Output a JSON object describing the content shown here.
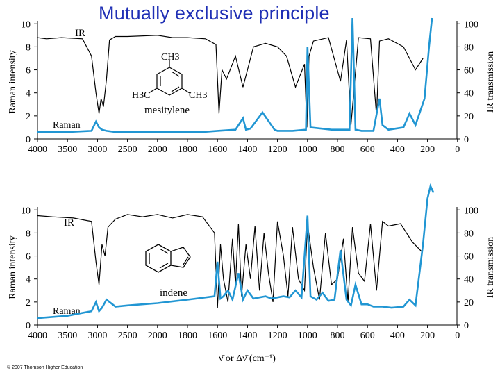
{
  "title": "Mutually exclusive principle",
  "copyright": "© 2007 Thomson Higher Education",
  "colors": {
    "raman": "#2196d3",
    "ir": "#000000",
    "title": "#1f2fb5"
  },
  "chart_data": [
    {
      "type": "line",
      "molecule": "mesitylene",
      "ir_label": "IR",
      "raman_label": "Raman",
      "structure_labels": {
        "top": "CH3",
        "left": "H3C",
        "right": "CH3"
      },
      "ylabel_left": "Raman intensity",
      "ylabel_right": "IR transmission",
      "x_ticks": [
        "4000",
        "3500",
        "3000",
        "2500",
        "2000",
        "1800",
        "1600",
        "1400",
        "1200",
        "1000",
        "800",
        "600",
        "400",
        "200",
        "0"
      ],
      "y_left_ticks": [
        "0",
        "2",
        "4",
        "6",
        "8",
        "10"
      ],
      "y_right_ticks": [
        "0",
        "20",
        "40",
        "60",
        "80",
        "100"
      ],
      "ylim_left": [
        0,
        10
      ],
      "ylim_right": [
        0,
        100
      ],
      "series": [
        {
          "name": "IR",
          "x_index": [
            0,
            0.3,
            0.8,
            1.5,
            1.8,
            1.95,
            2.05,
            2.12,
            2.2,
            2.3,
            2.4,
            2.6,
            3,
            4,
            4.5,
            5,
            5.6,
            5.95,
            6.05,
            6.15,
            6.3,
            6.6,
            6.85,
            7.0,
            7.2,
            7.6,
            8,
            8.3,
            8.6,
            8.9,
            8.98,
            9.05,
            9.2,
            9.7,
            10.1,
            10.3,
            10.45,
            10.7,
            11.1,
            11.3,
            11.4,
            11.7,
            12.2,
            12.6,
            12.85
          ],
          "values": [
            88,
            87,
            88,
            87,
            72,
            40,
            22,
            35,
            28,
            52,
            86,
            89,
            89,
            90,
            88,
            88,
            87,
            82,
            22,
            60,
            52,
            72,
            45,
            60,
            80,
            83,
            80,
            72,
            45,
            65,
            10,
            72,
            85,
            88,
            50,
            86,
            12,
            88,
            87,
            20,
            85,
            87,
            80,
            60,
            70
          ]
        },
        {
          "name": "Raman",
          "x_index": [
            0,
            1,
            1.8,
            1.95,
            2.05,
            2.15,
            2.3,
            2.6,
            4,
            5.5,
            6.0,
            6.6,
            6.85,
            6.95,
            7.1,
            7.5,
            7.9,
            8,
            8.5,
            8.95,
            9.0,
            9.1,
            9.8,
            10.4,
            10.5,
            10.6,
            10.8,
            11.2,
            11.4,
            11.5,
            11.7,
            12.2,
            12.4,
            12.6,
            12.9,
            13.05,
            13.15
          ],
          "values": [
            0.6,
            0.6,
            0.7,
            1.5,
            1.0,
            0.8,
            0.7,
            0.6,
            0.6,
            0.6,
            0.7,
            0.8,
            1.8,
            0.8,
            0.9,
            2.3,
            0.8,
            0.7,
            0.7,
            0.8,
            8.0,
            1.0,
            0.8,
            0.8,
            10.5,
            0.8,
            0.7,
            0.7,
            3.5,
            1.2,
            0.8,
            1.0,
            2.2,
            1.2,
            3.5,
            8.0,
            10.5
          ]
        }
      ]
    },
    {
      "type": "line",
      "molecule": "indene",
      "ir_label": "IR",
      "raman_label": "Raman",
      "xlabel": "ν̄ or Δν̄ (cm⁻¹)",
      "ylabel_left": "Raman intensity",
      "ylabel_right": "IR transmission",
      "x_ticks": [
        "4000",
        "3500",
        "3000",
        "2500",
        "2000",
        "1800",
        "1600",
        "1400",
        "1200",
        "1000",
        "800",
        "600",
        "400",
        "200",
        "0"
      ],
      "y_left_ticks": [
        "0",
        "2",
        "4",
        "6",
        "8",
        "10"
      ],
      "y_right_ticks": [
        "0",
        "20",
        "40",
        "60",
        "80",
        "100"
      ],
      "ylim_left": [
        0,
        10
      ],
      "ylim_right": [
        0,
        100
      ],
      "series": [
        {
          "name": "IR",
          "x_index": [
            0,
            0.5,
            1.2,
            1.8,
            1.95,
            2.05,
            2.15,
            2.25,
            2.35,
            2.6,
            3,
            3.5,
            4,
            4.5,
            5,
            5.5,
            5.9,
            6.0,
            6.1,
            6.2,
            6.35,
            6.5,
            6.6,
            6.7,
            6.8,
            6.95,
            7.1,
            7.25,
            7.4,
            7.55,
            7.7,
            7.85,
            8.0,
            8.2,
            8.35,
            8.5,
            8.7,
            8.9,
            9.0,
            9.2,
            9.4,
            9.6,
            9.8,
            10.0,
            10.2,
            10.35,
            10.5,
            10.7,
            10.9,
            11.1,
            11.3,
            11.5,
            11.7,
            12.1,
            12.5,
            12.8
          ],
          "values": [
            95,
            94,
            93,
            90,
            55,
            35,
            70,
            60,
            85,
            92,
            96,
            94,
            96,
            93,
            96,
            94,
            80,
            15,
            70,
            40,
            20,
            75,
            35,
            88,
            25,
            70,
            40,
            86,
            30,
            80,
            45,
            20,
            90,
            60,
            25,
            85,
            40,
            30,
            88,
            50,
            22,
            80,
            35,
            40,
            75,
            20,
            85,
            45,
            38,
            88,
            30,
            90,
            86,
            88,
            72,
            64
          ]
        },
        {
          "name": "Raman",
          "x_index": [
            0,
            1,
            1.8,
            1.95,
            2.05,
            2.15,
            2.3,
            2.6,
            3,
            4,
            5,
            5.9,
            6.0,
            6.1,
            6.2,
            6.35,
            6.5,
            6.7,
            6.85,
            7.0,
            7.2,
            7.4,
            7.6,
            7.8,
            8.0,
            8.2,
            8.4,
            8.6,
            8.8,
            9.0,
            9.1,
            9.3,
            9.5,
            9.7,
            9.9,
            10.1,
            10.3,
            10.45,
            10.6,
            10.8,
            11.0,
            11.2,
            11.5,
            11.8,
            12.2,
            12.4,
            12.6,
            12.85,
            13.0,
            13.1,
            13.2
          ],
          "values": [
            0.6,
            0.8,
            1.2,
            2.0,
            1.2,
            1.5,
            2.2,
            1.6,
            1.7,
            1.9,
            2.2,
            2.5,
            5.5,
            2.3,
            2.5,
            3.0,
            2.2,
            4.5,
            2.2,
            3.0,
            2.3,
            2.4,
            2.5,
            2.3,
            2.4,
            2.5,
            2.4,
            3.0,
            2.4,
            9.5,
            2.5,
            2.2,
            2.8,
            2.1,
            2.2,
            6.5,
            2.2,
            1.7,
            3.5,
            1.8,
            1.8,
            1.6,
            1.6,
            1.5,
            1.6,
            2.2,
            1.7,
            7.0,
            11.0,
            12.5,
            11.5
          ]
        }
      ]
    }
  ]
}
